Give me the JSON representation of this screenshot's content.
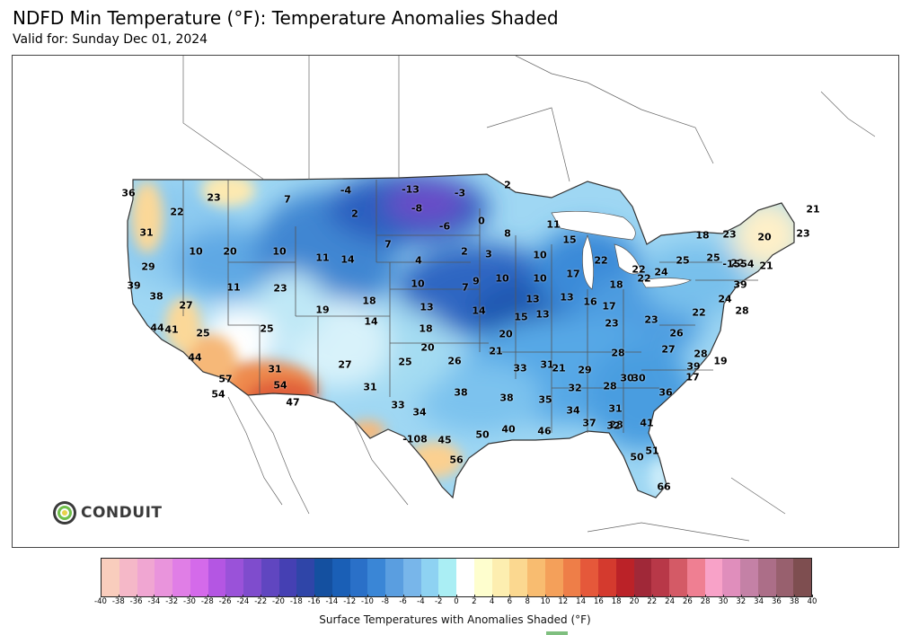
{
  "header": {
    "title": "NDFD Min Temperature (°F): Temperature Anomalies Shaded",
    "subtitle": "Valid for: Sunday Dec 01, 2024"
  },
  "logo": {
    "text": "CONDUIT",
    "icon": "conduit-logo-icon"
  },
  "legend": {
    "label": "Surface Temperatures with Anomalies Shaded (°F)",
    "ticks": [
      "-40",
      "-38",
      "-36",
      "-34",
      "-32",
      "-30",
      "-28",
      "-26",
      "-24",
      "-22",
      "-20",
      "-18",
      "-16",
      "-14",
      "-12",
      "-10",
      "-8",
      "-6",
      "-4",
      "-2",
      "0",
      "2",
      "4",
      "6",
      "8",
      "10",
      "12",
      "14",
      "16",
      "18",
      "20",
      "22",
      "24",
      "26",
      "28",
      "30",
      "32",
      "34",
      "36",
      "38",
      "40"
    ],
    "colors": [
      "#f9cdbd",
      "#f5b8c8",
      "#f0a6d2",
      "#e994dc",
      "#e07ee6",
      "#d46aea",
      "#b456e3",
      "#9a52d9",
      "#7f4ccd",
      "#6046c0",
      "#4540b3",
      "#2f45a8",
      "#1450a0",
      "#1a5fb6",
      "#2a70c8",
      "#3a86d6",
      "#5a9ee0",
      "#78b6ea",
      "#8ed2f2",
      "#aaeef4",
      "#ffffff",
      "#fefece",
      "#fdeeb0",
      "#fbd890",
      "#f8bc70",
      "#f4a05a",
      "#ee7e48",
      "#e5583a",
      "#d43a2e",
      "#bb2228",
      "#a02838",
      "#b83848",
      "#d45a66",
      "#ef7f92",
      "#f8a2c8",
      "#e08ebc",
      "#c481a6",
      "#ac6e88",
      "#98606e",
      "#7e4e50",
      "#603e30"
    ]
  },
  "labels": [
    {
      "t": "36"
    },
    {
      "t": "23"
    },
    {
      "t": "22"
    },
    {
      "t": "31"
    },
    {
      "t": "10"
    },
    {
      "t": "20"
    },
    {
      "t": "29"
    },
    {
      "t": "39"
    },
    {
      "t": "38"
    },
    {
      "t": "27"
    },
    {
      "t": "11"
    },
    {
      "t": "10"
    },
    {
      "t": "44"
    },
    {
      "t": "41"
    },
    {
      "t": "25"
    },
    {
      "t": "44"
    },
    {
      "t": "57"
    },
    {
      "t": "54"
    },
    {
      "t": "7"
    },
    {
      "t": "-4"
    },
    {
      "t": "2"
    },
    {
      "t": "-13"
    },
    {
      "t": "-8"
    },
    {
      "t": "-3"
    },
    {
      "t": "2"
    },
    {
      "t": "0"
    },
    {
      "t": "-6"
    },
    {
      "t": "7"
    },
    {
      "t": "11"
    },
    {
      "t": "14"
    },
    {
      "t": "23"
    },
    {
      "t": "19"
    },
    {
      "t": "25"
    },
    {
      "t": "18"
    },
    {
      "t": "14"
    },
    {
      "t": "31"
    },
    {
      "t": "54"
    },
    {
      "t": "47"
    },
    {
      "t": "27"
    },
    {
      "t": "31"
    },
    {
      "t": "4"
    },
    {
      "t": "2"
    },
    {
      "t": "3"
    },
    {
      "t": "8"
    },
    {
      "t": "10"
    },
    {
      "t": "13"
    },
    {
      "t": "18"
    },
    {
      "t": "20"
    },
    {
      "t": "25"
    },
    {
      "t": "33"
    },
    {
      "t": "34"
    },
    {
      "t": "-108"
    },
    {
      "t": "45"
    },
    {
      "t": "56"
    },
    {
      "t": "7"
    },
    {
      "t": "9"
    },
    {
      "t": "10"
    },
    {
      "t": "14"
    },
    {
      "t": "20"
    },
    {
      "t": "26"
    },
    {
      "t": "21"
    },
    {
      "t": "38"
    },
    {
      "t": "38"
    },
    {
      "t": "50"
    },
    {
      "t": "40"
    },
    {
      "t": "46"
    },
    {
      "t": "11"
    },
    {
      "t": "15"
    },
    {
      "t": "10"
    },
    {
      "t": "10"
    },
    {
      "t": "13"
    },
    {
      "t": "15"
    },
    {
      "t": "13"
    },
    {
      "t": "13"
    },
    {
      "t": "33"
    },
    {
      "t": "31"
    },
    {
      "t": "35"
    },
    {
      "t": "21"
    },
    {
      "t": "17"
    },
    {
      "t": "22"
    },
    {
      "t": "22"
    },
    {
      "t": "22"
    },
    {
      "t": "18"
    },
    {
      "t": "16"
    },
    {
      "t": "17"
    },
    {
      "t": "23"
    },
    {
      "t": "24"
    },
    {
      "t": "28"
    },
    {
      "t": "29"
    },
    {
      "t": "32"
    },
    {
      "t": "34"
    },
    {
      "t": "37"
    },
    {
      "t": "28"
    },
    {
      "t": "28"
    },
    {
      "t": "31"
    },
    {
      "t": "32"
    },
    {
      "t": "41"
    },
    {
      "t": "30"
    },
    {
      "t": "23"
    },
    {
      "t": "26"
    },
    {
      "t": "27"
    },
    {
      "t": "28"
    },
    {
      "t": "30"
    },
    {
      "t": "36"
    },
    {
      "t": "51"
    },
    {
      "t": "50"
    },
    {
      "t": "66"
    },
    {
      "t": "39"
    },
    {
      "t": "19"
    },
    {
      "t": "17"
    },
    {
      "t": "22"
    },
    {
      "t": "24"
    },
    {
      "t": "28"
    },
    {
      "t": "25"
    },
    {
      "t": "25"
    },
    {
      "t": "22"
    },
    {
      "t": "21"
    },
    {
      "t": "23"
    },
    {
      "t": "18"
    },
    {
      "t": "-1554"
    },
    {
      "t": "20"
    },
    {
      "t": "23"
    },
    {
      "t": "21"
    },
    {
      "t": "39"
    }
  ]
}
